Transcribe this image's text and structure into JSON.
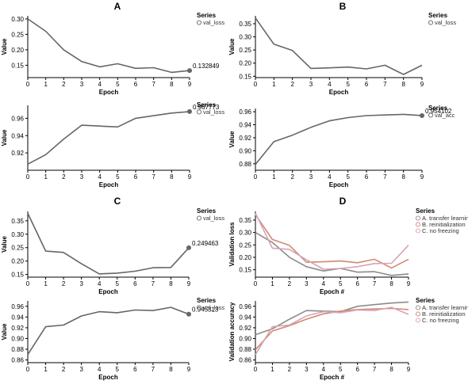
{
  "panel_letters": [
    "A",
    "B",
    "C",
    "D"
  ],
  "colors": {
    "val_line": "#666666",
    "transfer": "#8c8c8c",
    "reinit": "#d08a72",
    "nofreeze": "#d9a3b8",
    "axis": "#000000",
    "grid": "#e6e6e6"
  },
  "chart_data": [
    {
      "id": "A-loss",
      "panel": "A",
      "type": "line",
      "xlabel": "Epoch",
      "ylabel": "Value",
      "xlim": [
        0,
        9
      ],
      "ylim": [
        0.11,
        0.31
      ],
      "xticks": [
        0,
        1,
        2,
        3,
        4,
        5,
        6,
        7,
        8,
        9
      ],
      "yticks": [
        0.15,
        0.2,
        0.25,
        0.3
      ],
      "ytick_labels": [
        "0.15",
        "0.20",
        "0.25",
        "0.30"
      ],
      "legend_title": "Series",
      "series": [
        {
          "name": "val_loss",
          "color": "#666666",
          "x": [
            0,
            1,
            2,
            3,
            4,
            5,
            6,
            7,
            8,
            9
          ],
          "values": [
            0.3,
            0.26,
            0.2,
            0.162,
            0.145,
            0.155,
            0.14,
            0.142,
            0.127,
            0.132849
          ]
        }
      ],
      "end_label": "0.132849"
    },
    {
      "id": "A-acc",
      "panel": "A",
      "type": "line",
      "xlabel": "Epoch",
      "ylabel": "Value",
      "xlim": [
        0,
        9
      ],
      "ylim": [
        0.9,
        0.975
      ],
      "xticks": [
        0,
        1,
        2,
        3,
        4,
        5,
        6,
        7,
        8,
        9
      ],
      "yticks": [
        0.92,
        0.94,
        0.96
      ],
      "ytick_labels": [
        "0.92",
        "0.94",
        "0.96"
      ],
      "legend_title": "Series",
      "series": [
        {
          "name": "val_loss",
          "color": "#666666",
          "x": [
            0,
            1,
            2,
            3,
            4,
            5,
            6,
            7,
            8,
            9
          ],
          "values": [
            0.907,
            0.918,
            0.936,
            0.952,
            0.951,
            0.95,
            0.96,
            0.963,
            0.966,
            0.967773
          ]
        }
      ],
      "end_label": "0.967773"
    },
    {
      "id": "B-loss",
      "panel": "B",
      "type": "line",
      "xlabel": "Epoch",
      "ylabel": "Value",
      "xlim": [
        0,
        9
      ],
      "ylim": [
        0.145,
        0.38
      ],
      "xticks": [
        0,
        1,
        2,
        3,
        4,
        5,
        6,
        7,
        8,
        9
      ],
      "yticks": [
        0.15,
        0.2,
        0.25,
        0.3,
        0.35
      ],
      "ytick_labels": [
        "0.15",
        "0.20",
        "0.25",
        "0.30",
        "0.35"
      ],
      "legend_title": "Series",
      "series": [
        {
          "name": "val_loss",
          "color": "#666666",
          "x": [
            0,
            1,
            2,
            3,
            4,
            5,
            6,
            7,
            8,
            9
          ],
          "values": [
            0.372,
            0.272,
            0.248,
            0.18,
            0.182,
            0.185,
            0.178,
            0.192,
            0.157,
            0.192
          ]
        }
      ]
    },
    {
      "id": "B-acc",
      "panel": "B",
      "type": "line",
      "xlabel": "Epoch",
      "ylabel": "Value",
      "xlim": [
        0,
        9
      ],
      "ylim": [
        0.87,
        0.965
      ],
      "xticks": [
        0,
        1,
        2,
        3,
        4,
        5,
        6,
        7,
        8,
        9
      ],
      "yticks": [
        0.88,
        0.9,
        0.92,
        0.94,
        0.96
      ],
      "ytick_labels": [
        "0.88",
        "0.90",
        "0.92",
        "0.94",
        "0.96"
      ],
      "legend_title": "Series",
      "series": [
        {
          "name": "val_acc",
          "color": "#666666",
          "x": [
            0,
            1,
            2,
            3,
            4,
            5,
            6,
            7,
            8,
            9
          ],
          "values": [
            0.879,
            0.914,
            0.924,
            0.936,
            0.946,
            0.951,
            0.954,
            0.955,
            0.956,
            0.954102
          ]
        }
      ],
      "end_label": "0.954102"
    },
    {
      "id": "C-loss",
      "panel": "C",
      "type": "line",
      "xlabel": "Epoch",
      "ylabel": "Value",
      "xlim": [
        0,
        9
      ],
      "ylim": [
        0.14,
        0.385
      ],
      "xticks": [
        0,
        1,
        2,
        3,
        4,
        5,
        6,
        7,
        8,
        9
      ],
      "yticks": [
        0.15,
        0.2,
        0.25,
        0.3,
        0.35
      ],
      "ytick_labels": [
        "0.15",
        "0.20",
        "0.25",
        "0.30",
        "0.35"
      ],
      "legend_title": "Series",
      "series": [
        {
          "name": "val_loss",
          "color": "#666666",
          "x": [
            0,
            1,
            2,
            3,
            4,
            5,
            6,
            7,
            8,
            9
          ],
          "values": [
            0.378,
            0.237,
            0.232,
            0.19,
            0.152,
            0.155,
            0.162,
            0.175,
            0.176,
            0.249463
          ]
        }
      ],
      "end_label": "0.249463"
    },
    {
      "id": "C-acc",
      "panel": "C",
      "type": "line",
      "xlabel": "Epoch",
      "ylabel": "Value",
      "xlim": [
        0,
        9
      ],
      "ylim": [
        0.855,
        0.97
      ],
      "xticks": [
        0,
        1,
        2,
        3,
        4,
        5,
        6,
        7,
        8,
        9
      ],
      "yticks": [
        0.86,
        0.88,
        0.9,
        0.92,
        0.94,
        0.96
      ],
      "ytick_labels": [
        "0.86",
        "0.88",
        "0.90",
        "0.92",
        "0.94",
        "0.96"
      ],
      "legend_title": "Series",
      "series": [
        {
          "name": "val_loss",
          "color": "#666666",
          "x": [
            0,
            1,
            2,
            3,
            4,
            5,
            6,
            7,
            8,
            9
          ],
          "values": [
            0.87,
            0.922,
            0.925,
            0.942,
            0.95,
            0.948,
            0.953,
            0.952,
            0.958,
            0.945313
          ]
        }
      ],
      "end_label": "0.945313"
    },
    {
      "id": "D-loss",
      "panel": "D",
      "type": "line",
      "xlabel": "Epoch #",
      "ylabel": "Validation loss",
      "xlim": [
        0,
        9
      ],
      "ylim": [
        0.12,
        0.385
      ],
      "xticks": [
        0,
        1,
        2,
        3,
        4,
        5,
        6,
        7,
        8,
        9
      ],
      "yticks": [
        0.15,
        0.2,
        0.25,
        0.3,
        0.35
      ],
      "ytick_labels": [
        "0.15",
        "0.20",
        "0.25",
        "0.30",
        "0.35"
      ],
      "legend_title": "Series",
      "series": [
        {
          "name": "A. transfer learning",
          "color": "#8c8c8c",
          "x": [
            0,
            1,
            2,
            3,
            4,
            5,
            6,
            7,
            8,
            9
          ],
          "values": [
            0.3,
            0.26,
            0.2,
            0.162,
            0.145,
            0.155,
            0.14,
            0.142,
            0.127,
            0.133
          ]
        },
        {
          "name": "B. reinitialization",
          "color": "#d08a72",
          "x": [
            0,
            1,
            2,
            3,
            4,
            5,
            6,
            7,
            8,
            9
          ],
          "values": [
            0.372,
            0.272,
            0.248,
            0.18,
            0.182,
            0.185,
            0.178,
            0.192,
            0.157,
            0.192
          ]
        },
        {
          "name": "C. no freezing",
          "color": "#d9a3b8",
          "x": [
            0,
            1,
            2,
            3,
            4,
            5,
            6,
            7,
            8,
            9
          ],
          "values": [
            0.378,
            0.237,
            0.232,
            0.19,
            0.152,
            0.155,
            0.162,
            0.175,
            0.176,
            0.249
          ]
        }
      ]
    },
    {
      "id": "D-acc",
      "panel": "D",
      "type": "line",
      "xlabel": "Epoch #",
      "ylabel": "Validation accuracy",
      "xlim": [
        0,
        9
      ],
      "ylim": [
        0.855,
        0.97
      ],
      "xticks": [
        0,
        1,
        2,
        3,
        4,
        5,
        6,
        7,
        8,
        9
      ],
      "yticks": [
        0.86,
        0.88,
        0.9,
        0.92,
        0.94,
        0.96
      ],
      "ytick_labels": [
        "0.86",
        "0.88",
        "0.90",
        "0.92",
        "0.94",
        "0.96"
      ],
      "legend_title": "Series",
      "series": [
        {
          "name": "A. transfer learning",
          "color": "#8c8c8c",
          "x": [
            0,
            1,
            2,
            3,
            4,
            5,
            6,
            7,
            8,
            9
          ],
          "values": [
            0.907,
            0.918,
            0.936,
            0.952,
            0.951,
            0.95,
            0.96,
            0.963,
            0.966,
            0.968
          ]
        },
        {
          "name": "B. reinitialization",
          "color": "#d08a72",
          "x": [
            0,
            1,
            2,
            3,
            4,
            5,
            6,
            7,
            8,
            9
          ],
          "values": [
            0.879,
            0.914,
            0.924,
            0.936,
            0.946,
            0.951,
            0.954,
            0.955,
            0.956,
            0.954
          ]
        },
        {
          "name": "C. no freezing",
          "color": "#d9a3b8",
          "x": [
            0,
            1,
            2,
            3,
            4,
            5,
            6,
            7,
            8,
            9
          ],
          "values": [
            0.87,
            0.922,
            0.925,
            0.942,
            0.95,
            0.948,
            0.953,
            0.952,
            0.958,
            0.945
          ]
        }
      ]
    }
  ]
}
